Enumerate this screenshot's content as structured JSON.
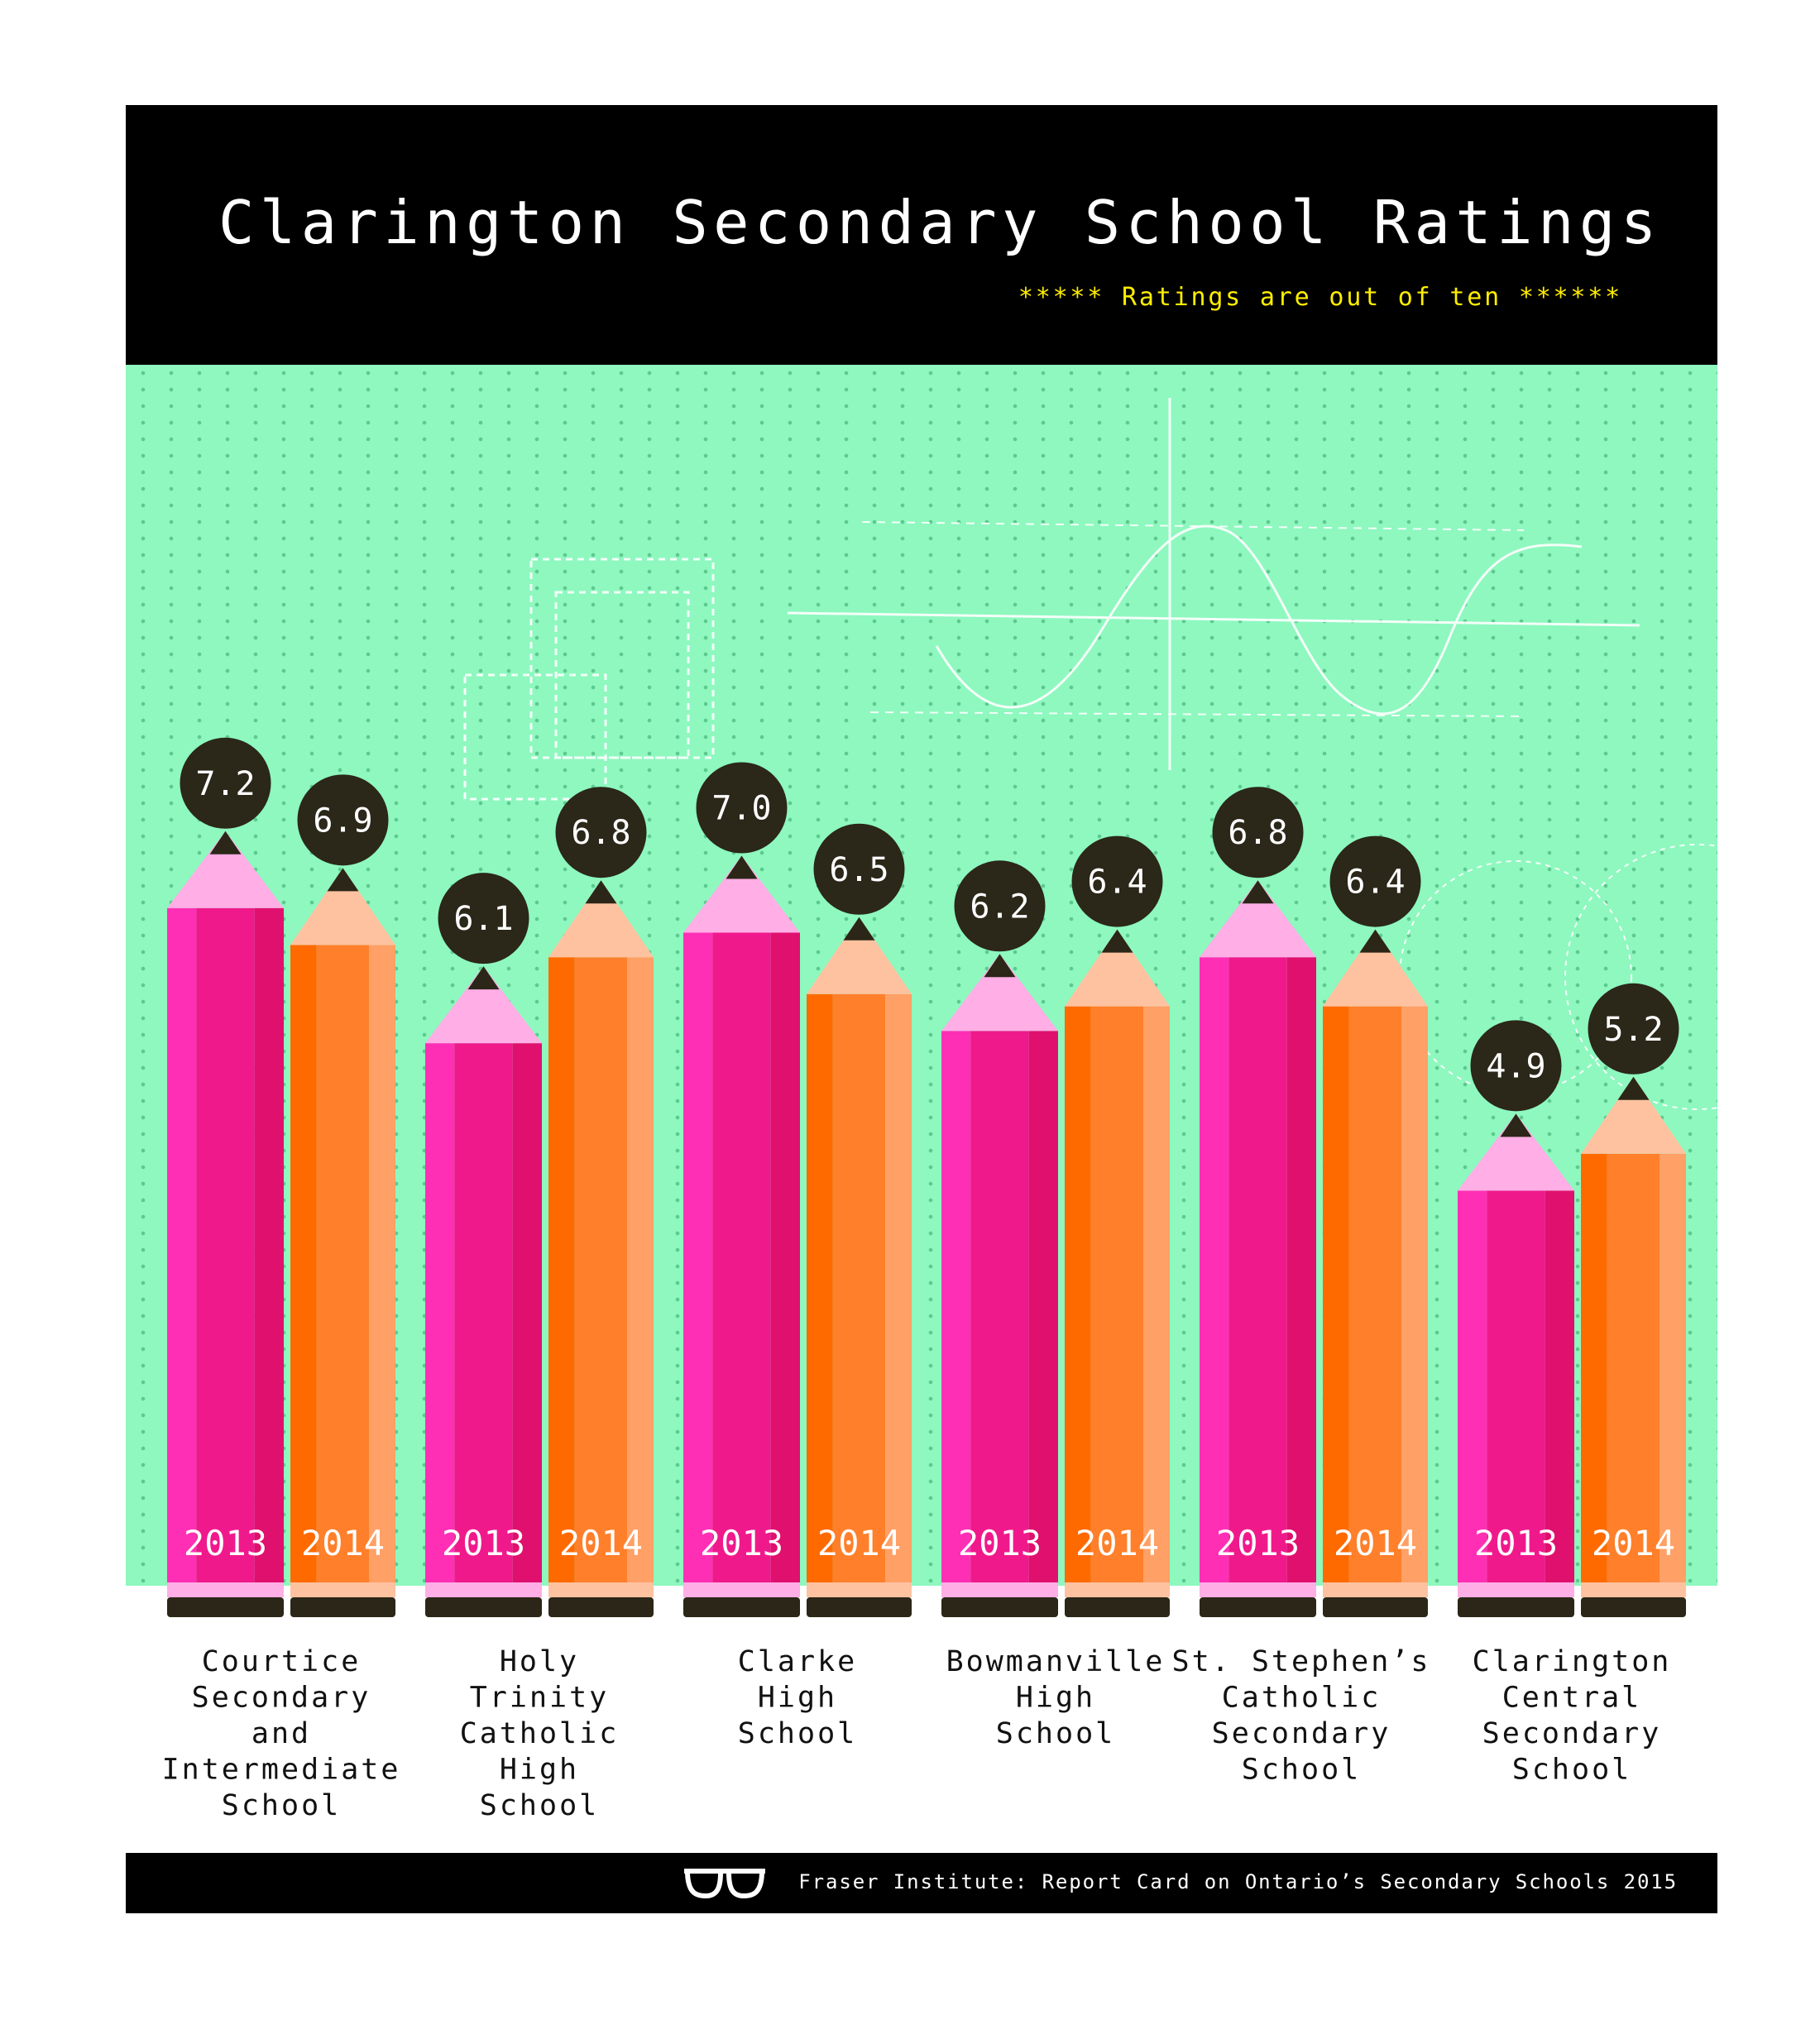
{
  "header": {
    "title": "Clarington Secondary School Ratings",
    "subtitle": "***** Ratings are out of ten ******"
  },
  "footer": {
    "source": "Fraser Institute: Report Card on Ontario’s Secondary Schools 2015",
    "icon": "glasses-icon"
  },
  "colors": {
    "2013_body": "#f0198c",
    "2013_tip": "#ffaee6",
    "2014_body": "#ff7f2a",
    "2014_tip": "#ffc2a0",
    "bubble": "#2b2719",
    "background": "#8ef8bf"
  },
  "chart_data": {
    "type": "bar",
    "title": "Clarington Secondary School Ratings",
    "subtitle": "***** Ratings are out of ten ******",
    "categories": [
      "Courtice Secondary and Intermediate School",
      "Holy Trinity Catholic High School",
      "Clarke High School",
      "Bowmanville High School",
      "St. Stephen’s Catholic Secondary School",
      "Clarington Central Secondary School"
    ],
    "category_lines": [
      [
        "Courtice",
        "Secondary",
        "and",
        "Intermediate",
        "School"
      ],
      [
        "Holy",
        "Trinity",
        "Catholic",
        "High",
        "School"
      ],
      [
        "Clarke",
        "High",
        "School"
      ],
      [
        "Bowmanville",
        "High",
        "School"
      ],
      [
        "St. Stephen’s",
        "Catholic",
        "Secondary",
        "School"
      ],
      [
        "Clarington",
        "Central",
        "Secondary",
        "School"
      ]
    ],
    "series": [
      {
        "name": "2013",
        "values": [
          7.2,
          6.1,
          7.0,
          6.2,
          6.8,
          4.9
        ]
      },
      {
        "name": "2014",
        "values": [
          6.9,
          6.8,
          6.5,
          6.4,
          6.4,
          5.2
        ]
      }
    ],
    "value_labels": [
      [
        "7.2",
        "6.1",
        "7.0",
        "6.2",
        "6.8",
        "4.9"
      ],
      [
        "6.9",
        "6.8",
        "6.5",
        "6.4",
        "6.4",
        "5.2"
      ]
    ],
    "ylim": [
      0,
      10
    ],
    "grid": false,
    "legend": "none"
  }
}
